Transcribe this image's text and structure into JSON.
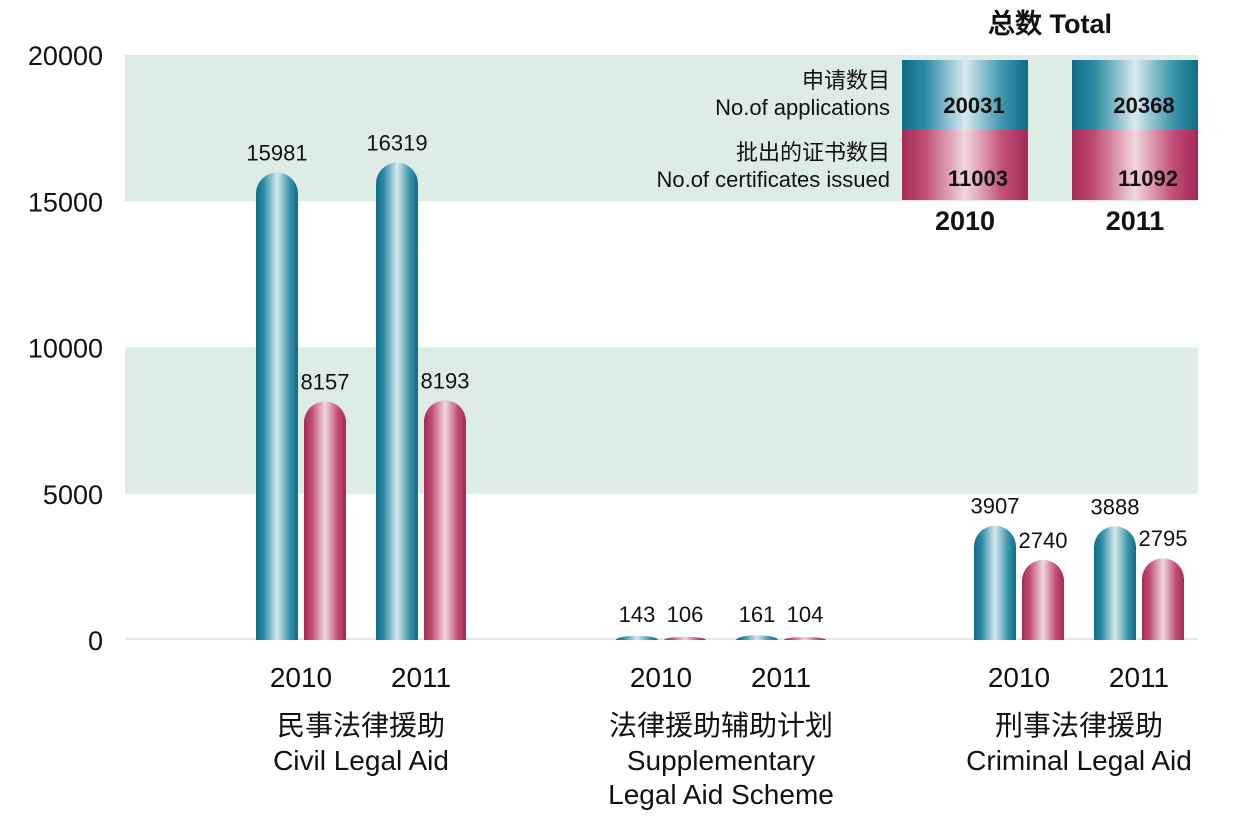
{
  "chart_data": {
    "type": "bar",
    "ylim": [
      0,
      20000
    ],
    "yticks": [
      "0",
      "5000",
      "10000",
      "15000",
      "20000"
    ],
    "grid": "alternating shaded bands",
    "colors": {
      "applications": "#1f7e99",
      "certificates": "#b3345f",
      "band": "#deece6"
    },
    "series": [
      {
        "key": "applications"
      },
      {
        "key": "certificates"
      }
    ],
    "groups": [
      {
        "label_cn": "民事法律援助",
        "label_en": [
          "Civil Legal Aid"
        ],
        "years": [
          {
            "year": "2010",
            "applications": 15981,
            "certificates": 8157
          },
          {
            "year": "2011",
            "applications": 16319,
            "certificates": 8193
          }
        ]
      },
      {
        "label_cn": "法律援助辅助计划",
        "label_en": [
          "Supplementary",
          "Legal Aid Scheme"
        ],
        "years": [
          {
            "year": "2010",
            "applications": 143,
            "certificates": 106
          },
          {
            "year": "2011",
            "applications": 161,
            "certificates": 104
          }
        ]
      },
      {
        "label_cn": "刑事法律援助",
        "label_en": [
          "Criminal Legal Aid"
        ],
        "years": [
          {
            "year": "2010",
            "applications": 3907,
            "certificates": 2740
          },
          {
            "year": "2011",
            "applications": 3888,
            "certificates": 2795
          }
        ]
      }
    ],
    "total": {
      "title": "总数 Total",
      "applications_label": [
        "申请数目",
        "No.of applications"
      ],
      "certificates_label": [
        "批出的证书数目",
        "No.of certificates issued"
      ],
      "years": [
        {
          "year": "2010",
          "applications": 20031,
          "certificates": 11003
        },
        {
          "year": "2011",
          "applications": 20368,
          "certificates": 11092
        }
      ]
    }
  }
}
